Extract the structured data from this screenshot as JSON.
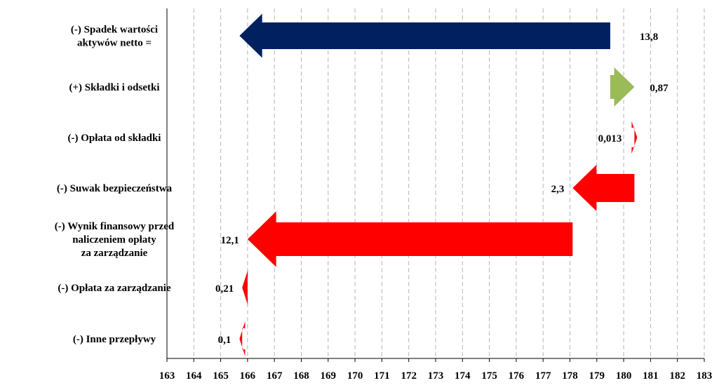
{
  "chart_data": {
    "type": "bar",
    "subtype": "waterfall-arrows",
    "title": "",
    "xlabel": "",
    "ylabel": "",
    "xlim": [
      163,
      183
    ],
    "x_ticks": [
      163,
      164,
      165,
      166,
      167,
      168,
      169,
      170,
      171,
      172,
      173,
      174,
      175,
      176,
      177,
      178,
      179,
      180,
      181,
      182,
      183
    ],
    "grid": "vertical-dashed",
    "categories": [
      "(-)  Spadek wartości aktywów  netto =",
      "(+) Składki i odsetki",
      "(-) Opłata od składki",
      "(-) Suwak bezpieczeństwa",
      "(-) Wynik finansowy przed naliczeniem opłaty za zarządzanie",
      "(-) Opłata za zarządzanie",
      "(-) Inne przepływy"
    ],
    "category_lines": [
      [
        "(-)  Spadek wartości",
        "aktywów  netto ="
      ],
      [
        "(+) Składki i odsetki"
      ],
      [
        "(-) Opłata od składki"
      ],
      [
        "(-) Suwak bezpieczeństwa"
      ],
      [
        "(-) Wynik finansowy przed",
        "naliczeniem opłaty",
        "za zarządzanie"
      ],
      [
        "(-) Opłata za zarządzanie"
      ],
      [
        "(-) Inne przepływy"
      ]
    ],
    "bars": [
      {
        "start": 179.5,
        "end": 165.7,
        "label": "13,8",
        "color": "#002060"
      },
      {
        "start": 179.5,
        "end": 180.4,
        "label": "0,87",
        "color": "#9bbb59"
      },
      {
        "start": 180.4,
        "end": 180.4,
        "label": "0,013",
        "color": "#ff0000"
      },
      {
        "start": 180.4,
        "end": 178.1,
        "label": "2,3",
        "color": "#ff0000"
      },
      {
        "start": 178.1,
        "end": 166.0,
        "label": "12,1",
        "color": "#ff0000"
      },
      {
        "start": 166.0,
        "end": 165.8,
        "label": "0,21",
        "color": "#ff0000"
      },
      {
        "start": 165.8,
        "end": 165.7,
        "label": "0,1",
        "color": "#ff0000"
      }
    ]
  }
}
